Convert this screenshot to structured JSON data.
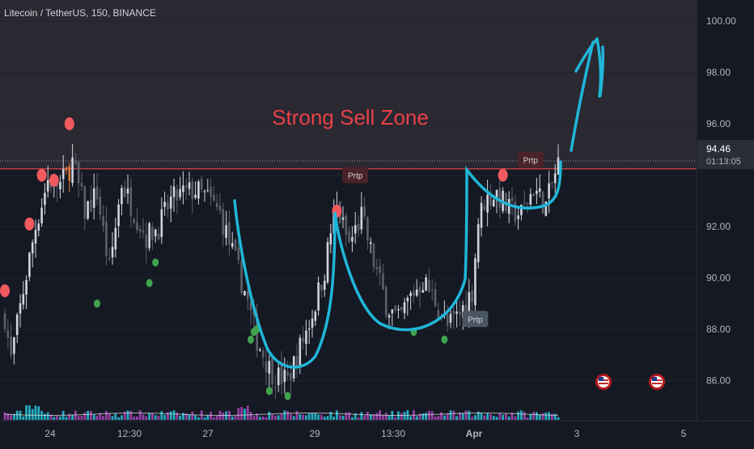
{
  "header": {
    "symbol_line": "Litecoin / TetherUS, 150, BINANCE"
  },
  "zone_label": "Strong Sell Zone",
  "price_marker": {
    "price": "94.46",
    "countdown": "01:13:05"
  },
  "price_tag_labels": [
    "Prtp",
    "Prtp",
    "Prtp"
  ],
  "colors": {
    "background": "#151924",
    "zone_fill": "#2a2830",
    "up_candle": "#d1d4dc",
    "down_candle": "#5d606b",
    "orange_candle": "#d97a3a",
    "sell_dot": "#f05a5e",
    "buy_dot": "#3fa34d",
    "drawing": "#1fb6d8",
    "zone_text": "#e8414a",
    "price_line": "#e8414a",
    "volume_up": "#26c6da",
    "volume_down": "#ab47bc",
    "axis_text": "#b2b5be"
  },
  "chart_data": {
    "type": "candlestick",
    "title": "Litecoin / TetherUS, 150, BINANCE",
    "ylim": [
      84.2,
      100.3
    ],
    "y_ticks": [
      "100.00",
      "98.00",
      "96.00",
      "94.00",
      "92.00",
      "90.00",
      "88.00",
      "86.00"
    ],
    "x_ticks": [
      "24",
      "12:30",
      "27",
      "29",
      "13:30",
      "Apr",
      "3",
      "5"
    ],
    "last_price": 94.46,
    "zone": {
      "label": "Strong Sell Zone",
      "from": 94.2,
      "to": 100.3
    },
    "close_path_keypoints": [
      [
        0,
        88.5
      ],
      [
        2,
        86.8
      ],
      [
        6,
        89.5
      ],
      [
        10,
        92.0
      ],
      [
        14,
        93.8
      ],
      [
        18,
        93.6
      ],
      [
        22,
        94.5
      ],
      [
        26,
        92.6
      ],
      [
        30,
        93.3
      ],
      [
        34,
        90.3
      ],
      [
        38,
        93.7
      ],
      [
        42,
        92.6
      ],
      [
        46,
        91.6
      ],
      [
        50,
        92.0
      ],
      [
        54,
        93.0
      ],
      [
        58,
        93.3
      ],
      [
        62,
        93.4
      ],
      [
        66,
        93.1
      ],
      [
        70,
        92.5
      ],
      [
        74,
        91.0
      ],
      [
        78,
        89.5
      ],
      [
        82,
        87.6
      ],
      [
        86,
        86.5
      ],
      [
        88,
        86.2
      ],
      [
        92,
        86.0
      ],
      [
        96,
        87.3
      ],
      [
        100,
        88.6
      ],
      [
        104,
        90.3
      ],
      [
        106,
        91.8
      ],
      [
        108,
        92.7
      ],
      [
        112,
        91.3
      ],
      [
        116,
        92.4
      ],
      [
        120,
        90.6
      ],
      [
        124,
        89.0
      ],
      [
        128,
        88.3
      ],
      [
        132,
        89.3
      ],
      [
        136,
        89.9
      ],
      [
        140,
        89.1
      ],
      [
        144,
        88.1
      ],
      [
        148,
        88.6
      ],
      [
        152,
        89.5
      ],
      [
        154,
        92.2
      ],
      [
        156,
        93.0
      ],
      [
        160,
        93.3
      ],
      [
        164,
        92.6
      ],
      [
        168,
        92.5
      ],
      [
        172,
        93.5
      ],
      [
        176,
        92.8
      ],
      [
        180,
        94.46
      ]
    ],
    "candle_count": 181,
    "signals": {
      "sell_dots": [
        [
          0,
          89.5
        ],
        [
          8,
          92.1
        ],
        [
          12,
          94.0
        ],
        [
          16,
          93.8
        ],
        [
          21,
          96.0
        ],
        [
          108,
          92.6
        ],
        [
          162,
          94.0
        ]
      ],
      "buy_dots": [
        [
          30,
          89.0
        ],
        [
          47,
          89.8
        ],
        [
          49,
          90.6
        ],
        [
          80,
          87.6
        ],
        [
          81,
          87.9
        ],
        [
          82,
          88.0
        ],
        [
          86,
          85.6
        ],
        [
          92,
          85.4
        ],
        [
          133,
          87.9
        ],
        [
          143,
          87.6
        ]
      ],
      "prtp_tags": [
        [
          114,
          94.0
        ],
        [
          153,
          88.4
        ],
        [
          171,
          94.6
        ]
      ],
      "flag_icons": [
        [
          191,
          85.6
        ],
        [
          208,
          85.6
        ]
      ]
    },
    "drawing": "hand-drawn cup-and-handle curves with an upward arrow"
  }
}
